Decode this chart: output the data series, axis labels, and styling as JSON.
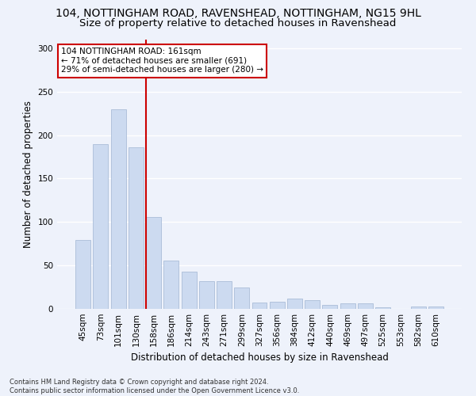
{
  "title": "104, NOTTINGHAM ROAD, RAVENSHEAD, NOTTINGHAM, NG15 9HL",
  "subtitle": "Size of property relative to detached houses in Ravenshead",
  "xlabel": "Distribution of detached houses by size in Ravenshead",
  "ylabel": "Number of detached properties",
  "categories": [
    "45sqm",
    "73sqm",
    "101sqm",
    "130sqm",
    "158sqm",
    "186sqm",
    "214sqm",
    "243sqm",
    "271sqm",
    "299sqm",
    "327sqm",
    "356sqm",
    "384sqm",
    "412sqm",
    "440sqm",
    "469sqm",
    "497sqm",
    "525sqm",
    "553sqm",
    "582sqm",
    "610sqm"
  ],
  "values": [
    79,
    190,
    230,
    186,
    106,
    56,
    43,
    32,
    32,
    25,
    7,
    8,
    12,
    10,
    5,
    6,
    6,
    2,
    0,
    3,
    3
  ],
  "bar_color": "#ccdaf0",
  "bar_edge_color": "#aabdd8",
  "marker_color": "#cc0000",
  "marker_bar_index": 4,
  "annotation_text": "104 NOTTINGHAM ROAD: 161sqm\n← 71% of detached houses are smaller (691)\n29% of semi-detached houses are larger (280) →",
  "annotation_box_color": "#ffffff",
  "annotation_box_edge": "#cc0000",
  "ylim": [
    0,
    310
  ],
  "yticks": [
    0,
    50,
    100,
    150,
    200,
    250,
    300
  ],
  "title_fontsize": 10,
  "xlabel_fontsize": 8.5,
  "ylabel_fontsize": 8.5,
  "tick_fontsize": 7.5,
  "annot_fontsize": 7.5,
  "footnote": "Contains HM Land Registry data © Crown copyright and database right 2024.\nContains public sector information licensed under the Open Government Licence v3.0.",
  "footnote_fontsize": 6.0,
  "background_color": "#eef2fb",
  "grid_color": "#ffffff"
}
